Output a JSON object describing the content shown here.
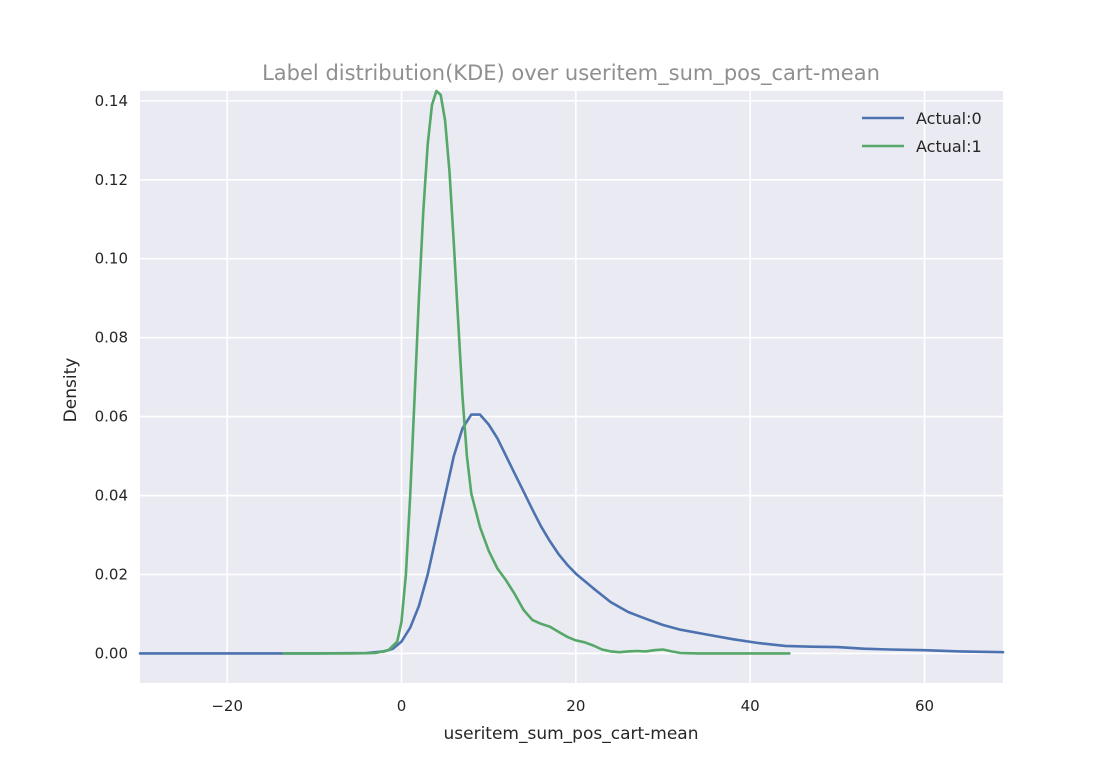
{
  "chart_data": {
    "type": "line",
    "title": "Label distribution(KDE) over useritem_sum_pos_cart-mean",
    "xlabel": "useritem_sum_pos_cart-mean",
    "ylabel": "Density",
    "xlim": [
      -30,
      69
    ],
    "ylim": [
      -0.0075,
      0.1425
    ],
    "xticks": [
      -20,
      0,
      20,
      40,
      60
    ],
    "yticks": [
      0.0,
      0.02,
      0.04,
      0.06,
      0.08,
      0.1,
      0.12,
      0.14
    ],
    "xtick_labels": [
      "−20",
      "0",
      "20",
      "40",
      "60"
    ],
    "ytick_labels": [
      "0.00",
      "0.02",
      "0.04",
      "0.06",
      "0.08",
      "0.10",
      "0.12",
      "0.14"
    ],
    "grid": true,
    "legend_position": "top-right",
    "colors": {
      "background": "#eaeaf2",
      "grid": "#ffffff",
      "title": "#8f8f8f"
    },
    "series": [
      {
        "name": "Actual:0",
        "color": "#4c72b0",
        "points": [
          [
            -30,
            0.0
          ],
          [
            -10,
            0.0
          ],
          [
            -4,
            0.0001
          ],
          [
            -2,
            0.0005
          ],
          [
            -1,
            0.0012
          ],
          [
            0,
            0.003
          ],
          [
            1,
            0.0065
          ],
          [
            2,
            0.012
          ],
          [
            3,
            0.02
          ],
          [
            4,
            0.03
          ],
          [
            5,
            0.04
          ],
          [
            6,
            0.05
          ],
          [
            7,
            0.057
          ],
          [
            8,
            0.0605
          ],
          [
            9,
            0.0605
          ],
          [
            10,
            0.058
          ],
          [
            11,
            0.0545
          ],
          [
            12,
            0.05
          ],
          [
            13,
            0.0455
          ],
          [
            14,
            0.041
          ],
          [
            15,
            0.0365
          ],
          [
            16,
            0.0322
          ],
          [
            17,
            0.0285
          ],
          [
            18,
            0.0252
          ],
          [
            19,
            0.0225
          ],
          [
            20,
            0.0202
          ],
          [
            22,
            0.0165
          ],
          [
            24,
            0.013
          ],
          [
            26,
            0.0105
          ],
          [
            28,
            0.0088
          ],
          [
            30,
            0.0072
          ],
          [
            32,
            0.006
          ],
          [
            35,
            0.0048
          ],
          [
            38,
            0.0036
          ],
          [
            41,
            0.0026
          ],
          [
            44,
            0.0019
          ],
          [
            47,
            0.0017
          ],
          [
            50,
            0.0016
          ],
          [
            53,
            0.0012
          ],
          [
            56,
            0.001
          ],
          [
            60,
            0.0008
          ],
          [
            64,
            0.0005
          ],
          [
            69,
            0.0003
          ]
        ]
      },
      {
        "name": "Actual:1",
        "color": "#55a868",
        "points": [
          [
            -13.5,
            0.0
          ],
          [
            -6,
            0.0
          ],
          [
            -3,
            0.0001
          ],
          [
            -1.5,
            0.0008
          ],
          [
            -0.5,
            0.003
          ],
          [
            0,
            0.008
          ],
          [
            0.5,
            0.02
          ],
          [
            1,
            0.04
          ],
          [
            1.5,
            0.065
          ],
          [
            2,
            0.09
          ],
          [
            2.5,
            0.112
          ],
          [
            3,
            0.129
          ],
          [
            3.5,
            0.139
          ],
          [
            4,
            0.1425
          ],
          [
            4.5,
            0.1415
          ],
          [
            5,
            0.135
          ],
          [
            5.5,
            0.122
          ],
          [
            6,
            0.104
          ],
          [
            6.5,
            0.084
          ],
          [
            7,
            0.065
          ],
          [
            7.5,
            0.05
          ],
          [
            8,
            0.0405
          ],
          [
            9,
            0.032
          ],
          [
            10,
            0.026
          ],
          [
            11,
            0.0215
          ],
          [
            12,
            0.0185
          ],
          [
            13,
            0.015
          ],
          [
            14,
            0.011
          ],
          [
            15,
            0.0085
          ],
          [
            16,
            0.0075
          ],
          [
            17,
            0.0068
          ],
          [
            18,
            0.0055
          ],
          [
            19,
            0.0042
          ],
          [
            20,
            0.0033
          ],
          [
            21,
            0.0028
          ],
          [
            22,
            0.002
          ],
          [
            23,
            0.001
          ],
          [
            24,
            0.0005
          ],
          [
            25,
            0.0003
          ],
          [
            26,
            0.0005
          ],
          [
            27,
            0.0006
          ],
          [
            28,
            0.0005
          ],
          [
            29,
            0.0008
          ],
          [
            30,
            0.001
          ],
          [
            31,
            0.0005
          ],
          [
            32,
            0.0001
          ],
          [
            34,
            0.0
          ],
          [
            44.5,
            0.0
          ]
        ]
      }
    ]
  }
}
